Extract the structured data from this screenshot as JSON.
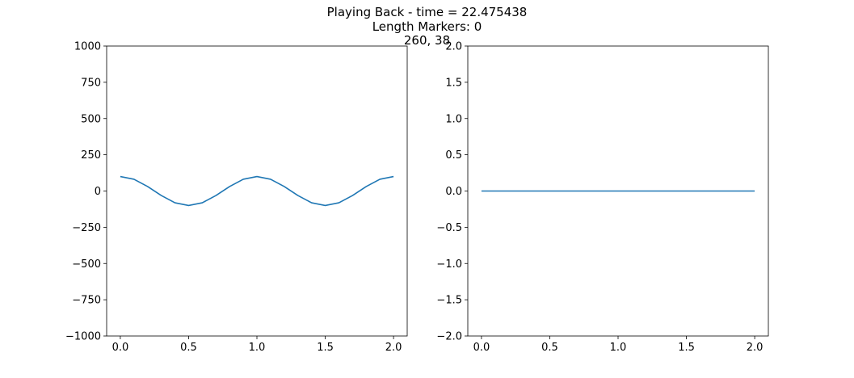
{
  "figure": {
    "title_lines": [
      "Playing Back - time = 22.475438",
      "Length Markers: 0",
      "260, 38"
    ]
  },
  "chart_data": [
    {
      "type": "line",
      "title": "",
      "xlabel": "",
      "ylabel": "",
      "xlim": [
        -0.1,
        2.1
      ],
      "ylim": [
        -1000,
        1000
      ],
      "xticks": [
        0.0,
        0.5,
        1.0,
        1.5,
        2.0
      ],
      "xtick_labels": [
        "0.0",
        "0.5",
        "1.0",
        "1.5",
        "2.0"
      ],
      "yticks": [
        -1000,
        -750,
        -500,
        -250,
        0,
        250,
        500,
        750,
        1000
      ],
      "ytick_labels": [
        "−1000",
        "−750",
        "−500",
        "−250",
        "0",
        "250",
        "500",
        "750",
        "1000"
      ],
      "grid": false,
      "series": [
        {
          "color": "#1f77b4",
          "x": [
            0.0,
            0.1,
            0.2,
            0.3,
            0.4,
            0.5,
            0.6,
            0.7,
            0.8,
            0.9,
            1.0,
            1.1,
            1.2,
            1.3,
            1.4,
            1.5,
            1.6,
            1.7,
            1.8,
            1.9,
            2.0
          ],
          "y": [
            100,
            81,
            31,
            -31,
            -81,
            -100,
            -81,
            -31,
            31,
            81,
            100,
            81,
            31,
            -31,
            -81,
            -100,
            -81,
            -31,
            31,
            81,
            100
          ]
        }
      ]
    },
    {
      "type": "line",
      "title": "",
      "xlabel": "",
      "ylabel": "",
      "xlim": [
        -0.1,
        2.1
      ],
      "ylim": [
        -2.0,
        2.0
      ],
      "xticks": [
        0.0,
        0.5,
        1.0,
        1.5,
        2.0
      ],
      "xtick_labels": [
        "0.0",
        "0.5",
        "1.0",
        "1.5",
        "2.0"
      ],
      "yticks": [
        -2.0,
        -1.5,
        -1.0,
        -0.5,
        0.0,
        0.5,
        1.0,
        1.5,
        2.0
      ],
      "ytick_labels": [
        "−2.0",
        "−1.5",
        "−1.0",
        "−0.5",
        "0.0",
        "0.5",
        "1.0",
        "1.5",
        "2.0"
      ],
      "grid": false,
      "series": [
        {
          "color": "#1f77b4",
          "x": [
            0.0,
            0.5,
            1.0,
            1.5,
            2.0
          ],
          "y": [
            0.0,
            0.0,
            0.0,
            0.0,
            0.0
          ]
        }
      ]
    }
  ]
}
